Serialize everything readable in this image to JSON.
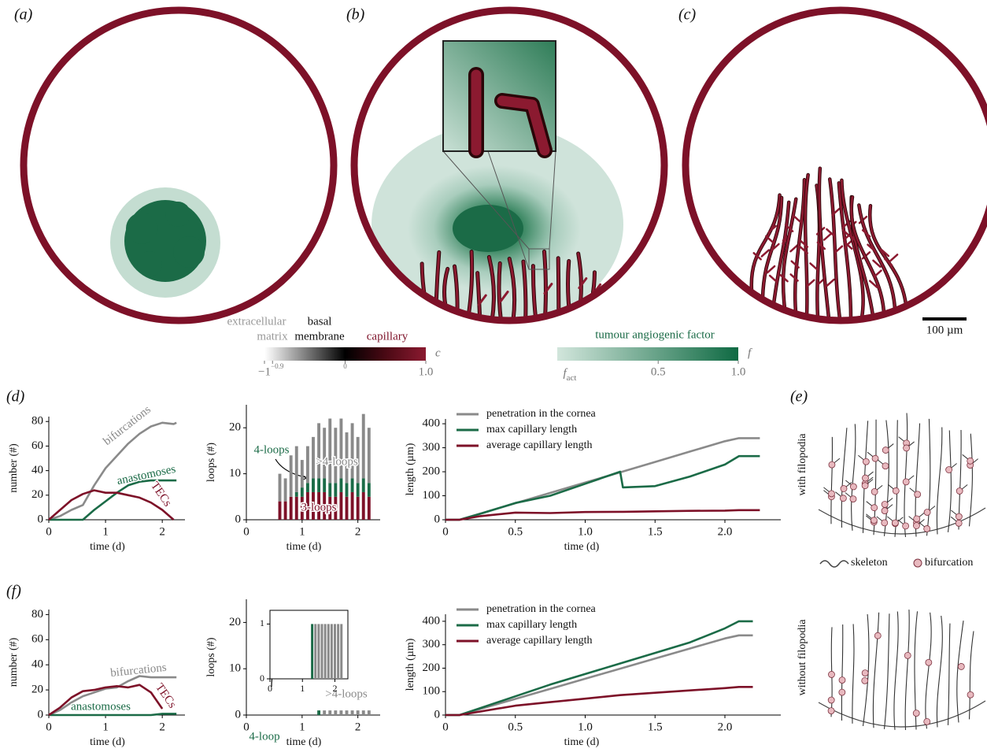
{
  "figure": {
    "panel_labels": [
      "(a)",
      "(b)",
      "(c)",
      "(d)",
      "(e)",
      "(f)"
    ],
    "scale_bar": "100 µm",
    "colorbars": [
      {
        "labels": [
          "extracellular",
          "matrix",
          "basal",
          "membrane",
          "capillary"
        ],
        "symbol": "c",
        "lim": [
          -1,
          1
        ],
        "ticks": [
          {
            "value": -1,
            "label": "−1"
          },
          {
            "value": -0.9,
            "label": "−0.9"
          },
          0,
          {
            "value": 1,
            "label": "1.0"
          }
        ]
      },
      {
        "title": "tumour angiogenic factor",
        "symbol": "f",
        "min_label": {
          "main": "f",
          "sub": "act"
        },
        "lim": [
          -0.13,
          1
        ],
        "ticks": [
          0.5,
          {
            "value": 1,
            "label": "1.0"
          }
        ]
      }
    ],
    "panel_e": {
      "ylabels": [
        "with filopodia",
        "without filopodia"
      ],
      "legend": [
        "skeleton",
        "bifurcation"
      ]
    }
  },
  "chart_data": [
    {
      "type": "line",
      "xlabel": "time (d)",
      "ylabel": "number (#)",
      "x": [
        0,
        0.2,
        0.4,
        0.6,
        0.8,
        1.0,
        1.2,
        1.4,
        1.6,
        1.8,
        2.0,
        2.2,
        2.25
      ],
      "xlim": [
        0,
        2.4
      ],
      "xticks": [
        0,
        1,
        2
      ],
      "ylim": [
        0,
        84
      ],
      "yticks": [
        0,
        20,
        40,
        60,
        80
      ],
      "series": [
        {
          "name": "bifurcations",
          "color": "#8a8a8a",
          "values": [
            0,
            3,
            8,
            12,
            28,
            42,
            52,
            62,
            70,
            76,
            79,
            78,
            79
          ]
        },
        {
          "name": "anastomoses",
          "color": "#1b6b47",
          "values": [
            0,
            0,
            0,
            0,
            8,
            15,
            22,
            28,
            31,
            32,
            32,
            32,
            32
          ]
        },
        {
          "name": "TECs",
          "color": "#7d1128",
          "values": [
            0,
            8,
            16,
            21,
            24,
            22,
            22,
            20,
            18,
            14,
            8,
            0,
            null
          ]
        }
      ]
    },
    {
      "type": "bar",
      "stacked": true,
      "xlabel": "time (d)",
      "ylabel": "loops (#)",
      "x": [
        0.6,
        0.7,
        0.8,
        0.9,
        1.0,
        1.1,
        1.2,
        1.3,
        1.4,
        1.5,
        1.6,
        1.7,
        1.8,
        1.9,
        2.0,
        2.1,
        2.2
      ],
      "xlim": [
        0,
        2.4
      ],
      "xticks": [
        0,
        1,
        2
      ],
      "ylim": [
        0,
        25
      ],
      "yticks": [
        0,
        10,
        20
      ],
      "series": [
        {
          "name": "3-loops",
          "color": "#7d1128",
          "values": [
            4,
            4,
            5,
            5,
            5,
            6,
            6,
            6,
            6,
            5,
            5,
            6,
            5,
            6,
            5,
            6,
            5
          ]
        },
        {
          "name": "4-loops",
          "color": "#1b6b47",
          "values": [
            0,
            0,
            0,
            1,
            2,
            2,
            3,
            3,
            3,
            3,
            3,
            3,
            3,
            3,
            3,
            3,
            3
          ]
        },
        {
          "name": ">4-loops",
          "color": "#8a8a8a",
          "values": [
            6,
            5,
            9,
            10,
            6,
            8,
            9,
            12,
            11,
            14,
            12,
            13,
            11,
            12,
            10,
            14,
            12
          ]
        }
      ]
    },
    {
      "type": "line",
      "xlabel": "time (d)",
      "ylabel": "length (µm)",
      "legend": "upper left",
      "x": [
        0,
        0.1,
        0.25,
        0.5,
        0.75,
        1.0,
        1.25,
        1.27,
        1.5,
        1.75,
        2.0,
        2.1,
        2.25
      ],
      "xlim": [
        0,
        2.4
      ],
      "xticks": [
        0,
        0.5,
        {
          "value": 1,
          "label": "1.0"
        },
        1.5,
        {
          "value": 2,
          "label": "2.0"
        }
      ],
      "ylim": [
        0,
        420
      ],
      "yticks": [
        0,
        100,
        200,
        300,
        400
      ],
      "series": [
        {
          "name": "penetration in the cornea",
          "color": "#8a8a8a",
          "values": [
            0,
            0,
            26,
            69,
            112,
            155,
            198,
            201,
            241,
            284,
            327,
            340,
            340
          ]
        },
        {
          "name": "max capillary length",
          "color": "#1b6b47",
          "values": [
            0,
            0,
            25,
            70,
            100,
            150,
            200,
            135,
            140,
            180,
            230,
            265,
            265
          ]
        },
        {
          "name": "average capillary length",
          "color": "#7d1128",
          "values": [
            0,
            0,
            15,
            30,
            28,
            32,
            33,
            33,
            35,
            37,
            38,
            40,
            40
          ]
        }
      ]
    },
    {
      "type": "line",
      "xlabel": "time (d)",
      "ylabel": "number (#)",
      "x": [
        0,
        0.2,
        0.4,
        0.6,
        0.8,
        1.0,
        1.2,
        1.4,
        1.6,
        1.8,
        2.0,
        2.2,
        2.25
      ],
      "xlim": [
        0,
        2.4
      ],
      "xticks": [
        0,
        1,
        2
      ],
      "ylim": [
        0,
        84
      ],
      "yticks": [
        0,
        20,
        40,
        60,
        80
      ],
      "series": [
        {
          "name": "bifurcations",
          "color": "#8a8a8a",
          "values": [
            0,
            4,
            10,
            15,
            18,
            21,
            22,
            27,
            31,
            30,
            30,
            30,
            30
          ]
        },
        {
          "name": "anastomoses",
          "color": "#1b6b47",
          "values": [
            0,
            0,
            0,
            0,
            0,
            0,
            0,
            0,
            0,
            0,
            1,
            1,
            1
          ]
        },
        {
          "name": "TECs",
          "color": "#7d1128",
          "values": [
            0,
            6,
            14,
            19,
            20,
            22,
            23,
            22,
            24,
            18,
            5,
            null,
            null
          ]
        }
      ]
    },
    {
      "type": "bar",
      "stacked": true,
      "xlabel": "time (d)",
      "ylabel": "loops (#)",
      "x": [
        1.3,
        1.4,
        1.5,
        1.6,
        1.7,
        1.8,
        1.9,
        2.0,
        2.1,
        2.2
      ],
      "xlim": [
        0,
        2.4
      ],
      "xticks": [
        0,
        1,
        2
      ],
      "ylim": [
        0,
        25
      ],
      "yticks": [
        0,
        10,
        20
      ],
      "series": [
        {
          "name": "4-loop",
          "color": "#1b6b47",
          "values": [
            1,
            0,
            0,
            0,
            0,
            0,
            0,
            0,
            0,
            0
          ]
        },
        {
          "name": ">4-loops",
          "color": "#8a8a8a",
          "values": [
            0,
            1,
            1,
            1,
            1,
            1,
            1,
            1,
            1,
            1
          ]
        }
      ]
    },
    {
      "type": "bar",
      "stacked": true,
      "frame": true,
      "x": [
        1.3,
        1.4,
        1.5,
        1.6,
        1.7,
        1.8,
        1.9,
        2.0,
        2.1,
        2.2
      ],
      "xlim": [
        0,
        2.4
      ],
      "xticks": [
        0,
        1,
        2
      ],
      "ylim": [
        0,
        1.25
      ],
      "yticks": [
        0,
        1
      ],
      "series": [
        {
          "color": "#1b6b47",
          "values": [
            1,
            0,
            0,
            0,
            0,
            0,
            0,
            0,
            0,
            0
          ]
        },
        {
          "color": "#8a8a8a",
          "values": [
            0,
            1,
            1,
            1,
            1,
            1,
            1,
            1,
            1,
            1
          ]
        }
      ]
    },
    {
      "type": "line",
      "xlabel": "time (d)",
      "ylabel": "length (µm)",
      "legend": "upper left",
      "x": [
        0,
        0.1,
        0.25,
        0.5,
        0.75,
        1.0,
        1.25,
        1.5,
        1.75,
        2.0,
        2.1,
        2.2
      ],
      "xlim": [
        0,
        2.4
      ],
      "xticks": [
        0,
        0.5,
        {
          "value": 1,
          "label": "1.0"
        },
        1.5,
        {
          "value": 2,
          "label": "2.0"
        }
      ],
      "ylim": [
        0,
        430
      ],
      "yticks": [
        0,
        100,
        200,
        300,
        400
      ],
      "series": [
        {
          "name": "penetration in the cornea",
          "color": "#8a8a8a",
          "values": [
            0,
            0,
            26,
            69,
            112,
            155,
            198,
            241,
            284,
            327,
            340,
            340
          ]
        },
        {
          "name": "max capillary length",
          "color": "#1b6b47",
          "values": [
            0,
            0,
            30,
            80,
            130,
            175,
            220,
            265,
            310,
            370,
            400,
            400
          ]
        },
        {
          "name": "average capillary length",
          "color": "#7d1128",
          "values": [
            0,
            0,
            15,
            40,
            55,
            70,
            85,
            95,
            105,
            115,
            120,
            120
          ]
        }
      ]
    }
  ]
}
